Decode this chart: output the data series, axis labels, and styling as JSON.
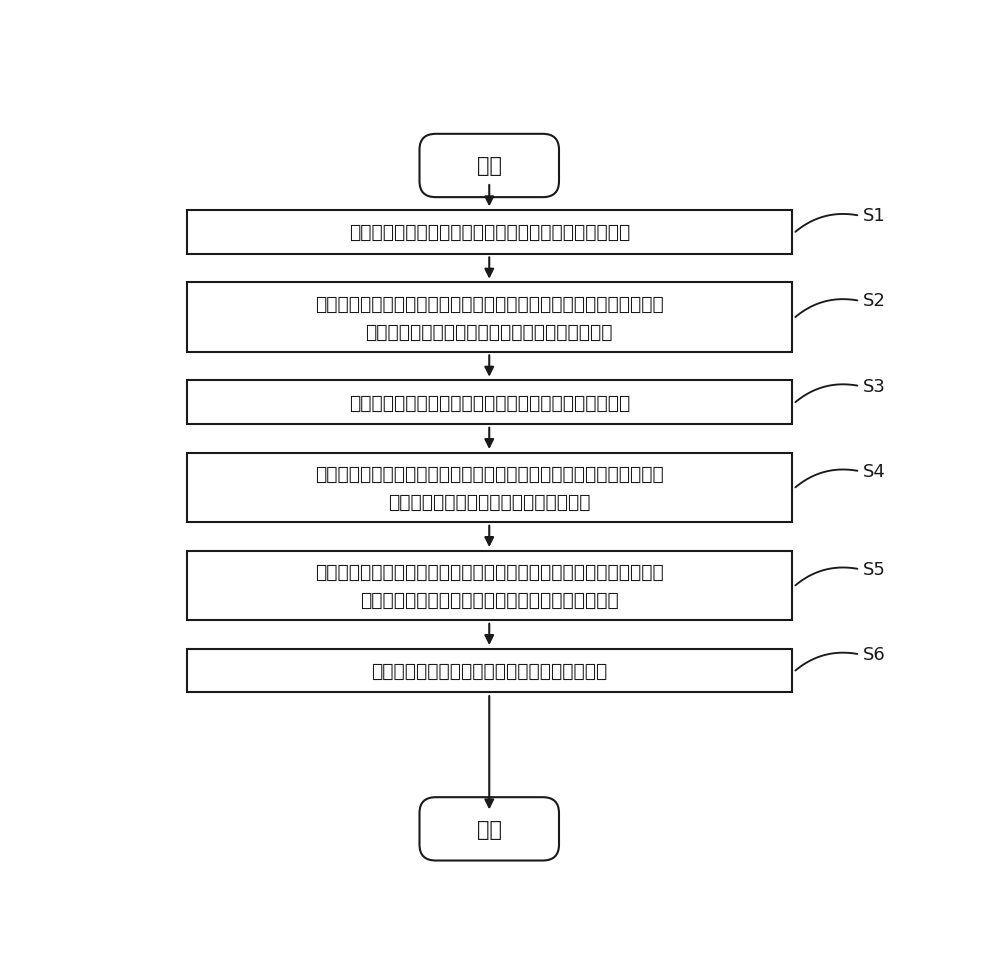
{
  "bg_color": "#ffffff",
  "border_color": "#1a1a1a",
  "text_color": "#1a1a1a",
  "arrow_color": "#1a1a1a",
  "start_end_text": [
    "开始",
    "结束"
  ],
  "boxes": [
    {
      "label": "S1",
      "text": "将预训练语言模型中除分类器模块外的其他参数进行冻结",
      "lines": 1
    },
    {
      "label": "S2",
      "text": "将训练数据集输入预训练语言模型，根据给定下游任务对分类器模块进\n行反向传播和梯度更新，得到训练好的分类器模块",
      "lines": 2
    },
    {
      "label": "S3",
      "text": "在预训练语言模型的每层自注意力的后面分别插入适配器",
      "lines": 1
    },
    {
      "label": "S4",
      "text": "将预训练语言模型的各个适配器和归一化模块解冻，并将预训练语言模\n型的训练好的分类器模块和其他参数冻结",
      "lines": 2
    },
    {
      "label": "S5",
      "text": "将训练数据集输入预训练语言模型，根据给定下游任务对各个适配器和\n归一化模块进行微调，得到微调好的预训练语言模型",
      "lines": 2
    },
    {
      "label": "S6",
      "text": "将待分类数据输入预训练语言模型得到分类结果",
      "lines": 1
    }
  ],
  "font_size_box": 13.5,
  "font_size_label": 13,
  "font_size_start_end": 15,
  "line_width": 1.5,
  "fig_width": 10.0,
  "fig_height": 9.79,
  "dpi": 100
}
